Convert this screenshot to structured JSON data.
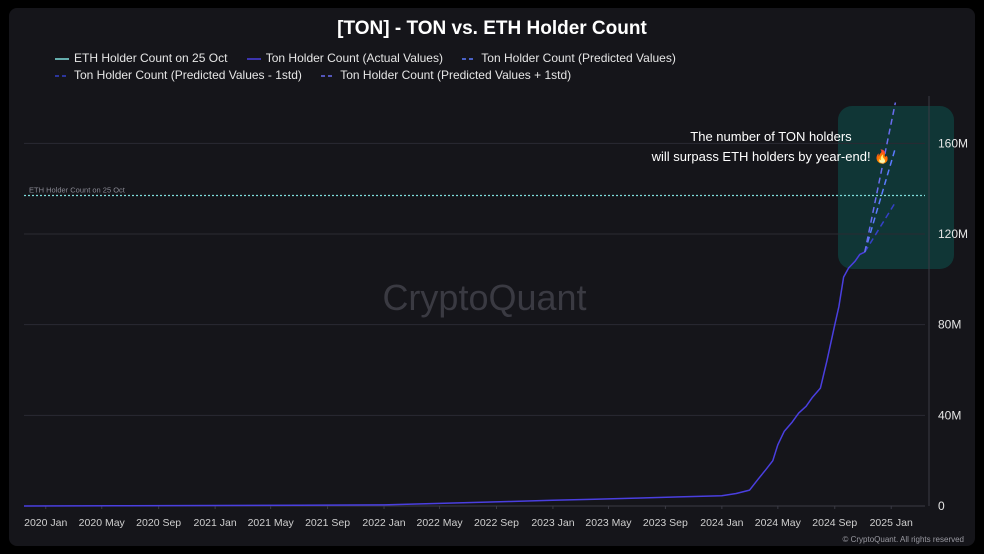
{
  "chart_data": {
    "type": "line",
    "title": "[TON] - TON vs. ETH Holder Count",
    "legend_placement": "top-left",
    "grid": true,
    "x_ticks": [
      "2020 Jan",
      "2020 May",
      "2020 Sep",
      "2021 Jan",
      "2021 May",
      "2021 Sep",
      "2022 Jan",
      "2022 May",
      "2022 Sep",
      "2023 Jan",
      "2023 May",
      "2023 Sep",
      "2024 Jan",
      "2024 May",
      "2024 Sep",
      "2025 Jan"
    ],
    "y_ticks": [
      "0",
      "40M",
      "80M",
      "120M",
      "160M"
    ],
    "ylim": [
      0,
      180000000
    ],
    "xlim": [
      "2019-11-15",
      "2025-03-15"
    ],
    "reference_line": {
      "name": "ETH Holder Count on 25 Oct",
      "label": "ETH Holder Count on 25 Oct",
      "value": 137000000,
      "color": "#7fdedd"
    },
    "series": [
      {
        "name": "Ton Holder Count (Actual Values)",
        "style": "solid",
        "color": "#4a3fe0",
        "x": [
          "2019-11-15",
          "2020-06-01",
          "2021-01-01",
          "2021-07-01",
          "2022-01-01",
          "2022-04-01",
          "2022-07-01",
          "2022-10-01",
          "2023-01-01",
          "2023-04-01",
          "2023-07-01",
          "2023-10-01",
          "2024-01-01",
          "2024-02-01",
          "2024-03-01",
          "2024-03-20",
          "2024-04-05",
          "2024-04-20",
          "2024-05-01",
          "2024-05-15",
          "2024-06-01",
          "2024-06-15",
          "2024-07-01",
          "2024-07-15",
          "2024-08-01",
          "2024-08-15",
          "2024-09-01",
          "2024-09-10",
          "2024-09-20",
          "2024-10-01",
          "2024-10-15",
          "2024-10-25",
          "2024-11-05"
        ],
        "values": [
          0,
          100000,
          200000,
          300000,
          500000,
          1000000,
          1500000,
          2000000,
          2500000,
          3000000,
          3500000,
          4000000,
          4500000,
          5500000,
          7000000,
          12000000,
          16000000,
          20000000,
          27000000,
          33000000,
          37000000,
          41000000,
          44000000,
          48000000,
          52000000,
          64000000,
          80000000,
          88000000,
          101000000,
          105000000,
          108000000,
          111000000,
          112000000
        ]
      },
      {
        "name": "Ton Holder Count (Predicted Values)",
        "style": "dashed",
        "color": "#5b7bff",
        "x": [
          "2024-11-05",
          "2025-01-10"
        ],
        "values": [
          112000000,
          158000000
        ]
      },
      {
        "name": "Ton Holder Count (Predicted Values - 1std)",
        "style": "dashed",
        "color": "#3540c8",
        "x": [
          "2024-11-05",
          "2025-01-10"
        ],
        "values": [
          112000000,
          134000000
        ]
      },
      {
        "name": "Ton Holder Count (Predicted Values + 1std)",
        "style": "dashed",
        "color": "#6a6df0",
        "x": [
          "2024-11-05",
          "2025-01-10"
        ],
        "values": [
          112000000,
          178000000
        ]
      }
    ],
    "annotation": {
      "line1": "The number of TON holders",
      "line2": "will surpass ETH holders by year-end! 🔥",
      "highlight_color": "#0f3a3a"
    },
    "watermark": "CryptoQuant",
    "footer": "© CryptoQuant. All rights reserved"
  }
}
